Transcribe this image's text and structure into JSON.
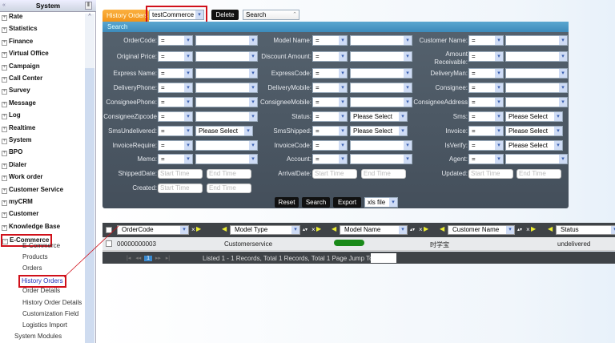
{
  "sidebar": {
    "title": "System",
    "collapse_icon": "double-chevron-left-icon",
    "modules": [
      "Rate",
      "Statistics",
      "Finance",
      "Virtual Office",
      "Campaign",
      "Call Center",
      "Survey",
      "Message",
      "Log",
      "Realtime",
      "System",
      "BPO",
      "Dialer",
      "Work order",
      "Customer Service",
      "myCRM",
      "Customer",
      "Knowledge Base",
      "E-Commerce"
    ],
    "ecommerce_items": [
      "E-Commerce",
      "Products",
      "Orders",
      "History Orders",
      "Order Details",
      "History Order Details",
      "Customization Field",
      "Logistics Import"
    ],
    "footer_item": "System Modules",
    "active_item": "History Orders"
  },
  "toolbar": {
    "tab_label": "History Orders",
    "module_select": "testCommerce",
    "delete_label": "Delete",
    "search_select": "Search"
  },
  "search": {
    "title": "Search",
    "rows": [
      [
        {
          "label": "OrderCode:",
          "op": "=",
          "value": ""
        },
        {
          "label": "Model Name:",
          "op": "=",
          "value": ""
        },
        {
          "label": "Customer Name:",
          "op": "=",
          "value": ""
        }
      ],
      [
        {
          "label": "Original Price:",
          "op": "=",
          "value": ""
        },
        {
          "label": "Discount Amount:",
          "op": "=",
          "value": ""
        },
        {
          "label": "Amount Receivable:",
          "op": "=",
          "value": ""
        }
      ],
      [
        {
          "label": "Express Name:",
          "op": "=",
          "value": ""
        },
        {
          "label": "ExpressCode:",
          "op": "=",
          "value": ""
        },
        {
          "label": "DeliveryMan:",
          "op": "=",
          "value": ""
        }
      ],
      [
        {
          "label": "DeliveryPhone:",
          "op": "=",
          "value": ""
        },
        {
          "label": "DeliveryMobile:",
          "op": "=",
          "value": ""
        },
        {
          "label": "Consignee:",
          "op": "=",
          "value": ""
        }
      ],
      [
        {
          "label": "ConsigneePhone:",
          "op": "=",
          "value": ""
        },
        {
          "label": "ConsigneeMobile:",
          "op": "=",
          "value": ""
        },
        {
          "label": "ConsigneeAddress",
          "op": "=",
          "value": ""
        }
      ],
      [
        {
          "label": "ConsigneeZipcode",
          "op": "=",
          "value": ""
        },
        {
          "label": "Status:",
          "op": "=",
          "value": "Please Select"
        },
        {
          "label": "Sms:",
          "op": "=",
          "value": "Please Select"
        }
      ],
      [
        {
          "label": "SmsUndelivered:",
          "op": "=",
          "value": "Please Select"
        },
        {
          "label": "SmsShipped:",
          "op": "=",
          "value": "Please Select"
        },
        {
          "label": "Invoice:",
          "op": "=",
          "value": "Please Select"
        }
      ],
      [
        {
          "label": "InvoiceRequire:",
          "op": "=",
          "value": ""
        },
        {
          "label": "InvoiceCode:",
          "op": "=",
          "value": ""
        },
        {
          "label": "IsVerify:",
          "op": "=",
          "value": "Please Select"
        }
      ],
      [
        {
          "label": "Memo:",
          "op": "=",
          "value": ""
        },
        {
          "label": "Account:",
          "op": "=",
          "value": ""
        },
        {
          "label": "Agent:",
          "op": "=",
          "value": ""
        }
      ],
      [
        {
          "label": "ShippedDate:",
          "date": true,
          "start": "Start Time",
          "end": "End Time"
        },
        {
          "label": "ArrivalDate:",
          "date": true,
          "start": "Start Time",
          "end": "End Time"
        },
        {
          "label": "Updated:",
          "date": true,
          "start": "Start Time",
          "end": "End Time"
        }
      ],
      [
        {
          "label": "Created:",
          "date": true,
          "start": "Start Time",
          "end": "End Time"
        }
      ]
    ],
    "reset_label": "Reset",
    "search_label": "Search",
    "export_label": "Export",
    "export_format": "xls file"
  },
  "grid": {
    "columns": [
      "OrderCode",
      "Model Type",
      "Model Name",
      "Customer Name",
      "Status"
    ],
    "rows": [
      {
        "order_code": "00000000003",
        "model_type": "Customerservice",
        "model_name": "",
        "customer_name": "时学宝",
        "status": "undelivered"
      }
    ],
    "pager": {
      "current_page": "1",
      "summary": "Listed 1 - 1 Records, Total 1 Records, Total 1 Page Jump To",
      "jump_value": ""
    }
  },
  "colors": {
    "tab": "#f29418",
    "panel": "#4a5560",
    "panel_header": "#4a98c6",
    "highlight": "#d0101a",
    "redaction": "#1a8a1a"
  }
}
